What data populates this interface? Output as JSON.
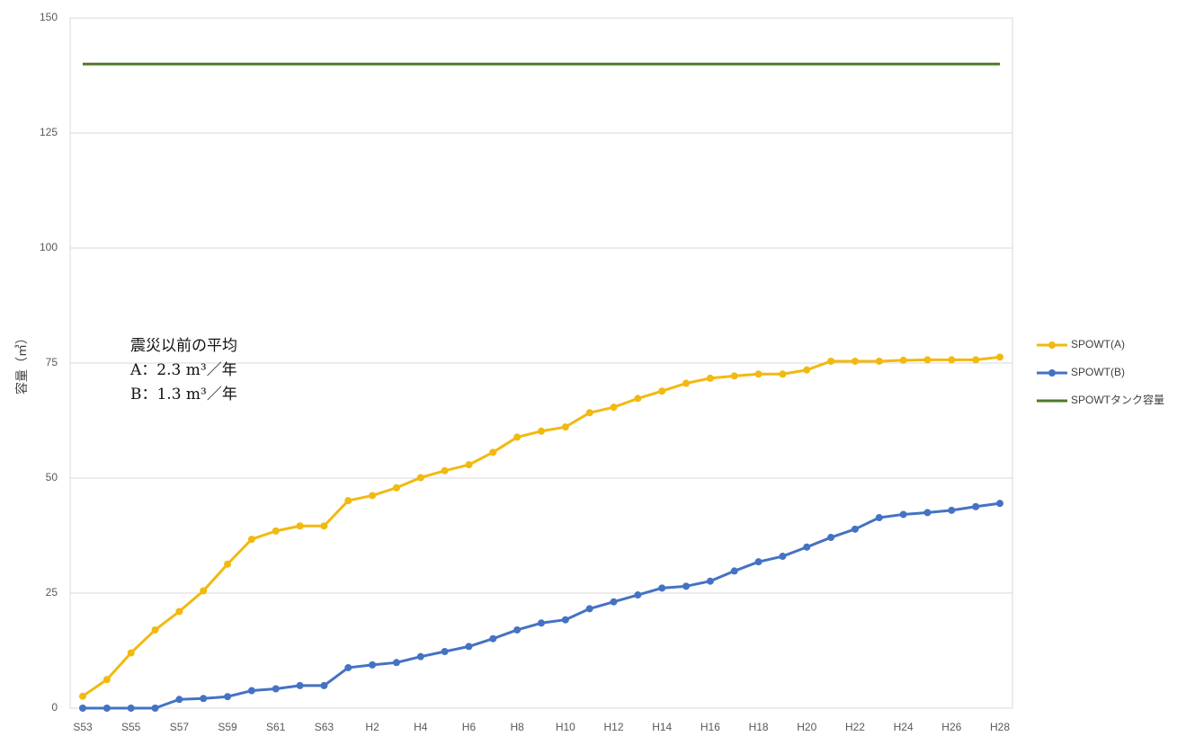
{
  "chart_data": {
    "type": "line",
    "ylabel": "容量（㎥）",
    "ylim": [
      0,
      150
    ],
    "yticks": [
      0,
      25,
      50,
      75,
      100,
      125,
      150
    ],
    "grid": true,
    "legend_position": "right",
    "categories": [
      "S53",
      "S54",
      "S55",
      "S56",
      "S57",
      "S58",
      "S59",
      "S60",
      "S61",
      "S62",
      "S63",
      "H1",
      "H2",
      "H3",
      "H4",
      "H5",
      "H6",
      "H7",
      "H8",
      "H9",
      "H10",
      "H11",
      "H12",
      "H13",
      "H14",
      "H15",
      "H16",
      "H17",
      "H18",
      "H19",
      "H20",
      "H21",
      "H22",
      "H23",
      "H24",
      "H25",
      "H26",
      "H27",
      "H28"
    ],
    "tick_labels": [
      "S53",
      "",
      "S55",
      "",
      "S57",
      "",
      "S59",
      "",
      "S61",
      "",
      "S63",
      "",
      "H2",
      "",
      "H4",
      "",
      "H6",
      "",
      "H8",
      "",
      "H10",
      "",
      "H12",
      "",
      "H14",
      "",
      "H16",
      "",
      "H18",
      "",
      "H20",
      "",
      "H22",
      "",
      "H24",
      "",
      "H26",
      "",
      "H28"
    ],
    "series": [
      {
        "name": "SPOWT(A)",
        "color": "#f2b90f",
        "marker": true,
        "values": [
          2.6,
          6.2,
          12,
          17,
          21,
          25.5,
          31.3,
          36.7,
          38.5,
          39.6,
          39.6,
          45.1,
          46.2,
          47.9,
          50.1,
          51.6,
          52.9,
          55.6,
          58.9,
          60.2,
          61.1,
          64.2,
          65.4,
          67.3,
          68.9,
          70.6,
          71.7,
          72.2,
          72.6,
          72.6,
          73.5,
          75.4,
          75.4,
          75.4,
          75.6,
          75.7,
          75.7,
          75.7,
          76.3
        ]
      },
      {
        "name": "SPOWT(B)",
        "color": "#4472c4",
        "marker": true,
        "values": [
          0,
          0,
          0,
          0,
          1.9,
          2.1,
          2.5,
          3.8,
          4.2,
          4.9,
          4.9,
          8.8,
          9.4,
          9.9,
          11.2,
          12.3,
          13.4,
          15.1,
          17.0,
          18.5,
          19.2,
          21.6,
          23.1,
          24.6,
          26.1,
          26.5,
          27.6,
          29.8,
          31.8,
          33.0,
          35.0,
          37.1,
          38.9,
          41.4,
          42.1,
          42.5,
          43.0,
          43.8,
          44.5
        ]
      },
      {
        "name": "SPOWTタンク容量",
        "color": "#4e7a26",
        "marker": false,
        "values": [
          140,
          140,
          140,
          140,
          140,
          140,
          140,
          140,
          140,
          140,
          140,
          140,
          140,
          140,
          140,
          140,
          140,
          140,
          140,
          140,
          140,
          140,
          140,
          140,
          140,
          140,
          140,
          140,
          140,
          140,
          140,
          140,
          140,
          140,
          140,
          140,
          140,
          140,
          140
        ]
      }
    ],
    "annotation": {
      "line1": "震災以前の平均",
      "line2": "A：2.3 m³／年",
      "line3": "B：1.3 m³／年"
    }
  }
}
